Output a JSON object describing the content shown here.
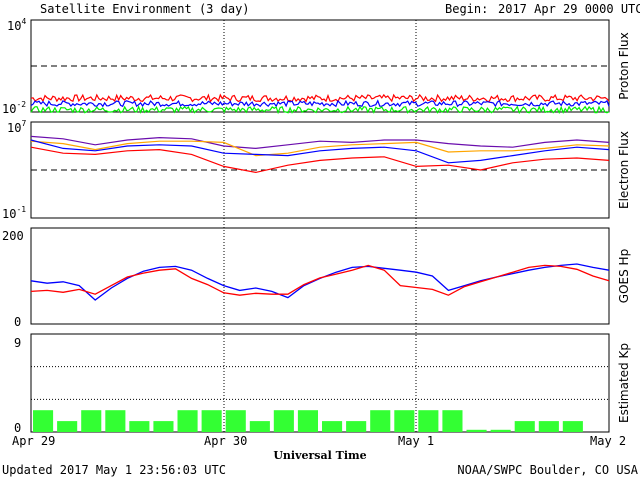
{
  "header": {
    "title": "Satellite Environment (3 day)",
    "begin_label": "Begin:",
    "begin_value": "2017 Apr 29 0000 UTC"
  },
  "footer": {
    "updated": "Updated 2017 May  1 23:56:03 UTC",
    "credit": "NOAA/SWPC Boulder, CO USA",
    "xlabel": "Universal Time"
  },
  "x_ticks": [
    "Apr 29",
    "Apr 30",
    "May 1",
    "May 2"
  ],
  "colors": {
    "red": "#ff0000",
    "blue": "#0000ff",
    "green": "#00ee00",
    "orange": "#ffa500",
    "purple": "#6a0dad",
    "bar": "#33ff33"
  },
  "chart_data": [
    {
      "type": "line",
      "panel": "proton",
      "ylabel": "Proton Flux",
      "scale": "log",
      "ylim_exp": [
        -2,
        4
      ],
      "y_ticks": [
        {
          "base": "10",
          "exp": "4",
          "v": 4
        },
        {
          "base": "10",
          "exp": "-2",
          "v": -2
        }
      ],
      "threshold_exp": 1,
      "xlim_hours": [
        0,
        72
      ],
      "series": [
        {
          "color": "#ff0000",
          "mean_exp": -1.1,
          "noise": 0.22
        },
        {
          "color": "#0000ff",
          "mean_exp": -1.45,
          "noise": 0.18
        },
        {
          "color": "#00ee00",
          "mean_exp": -1.85,
          "noise": 0.2
        }
      ]
    },
    {
      "type": "line",
      "panel": "electron",
      "ylabel": "Electron Flux",
      "scale": "log",
      "ylim_exp": [
        -1,
        7
      ],
      "y_ticks": [
        {
          "base": "10",
          "exp": "7",
          "v": 7
        },
        {
          "base": "10",
          "exp": "-1",
          "v": -1
        }
      ],
      "threshold_exp": 3,
      "x_hours": [
        0,
        4,
        8,
        12,
        16,
        20,
        24,
        28,
        32,
        36,
        40,
        44,
        48,
        52,
        56,
        60,
        64,
        68,
        72
      ],
      "series": [
        {
          "color": "#6a0dad",
          "values": [
            5.8,
            5.6,
            5.1,
            5.5,
            5.7,
            5.6,
            5.0,
            4.8,
            5.1,
            5.4,
            5.3,
            5.5,
            5.5,
            5.2,
            5.0,
            4.9,
            5.3,
            5.5,
            5.3
          ]
        },
        {
          "color": "#ffa500",
          "values": [
            5.4,
            5.2,
            4.7,
            5.2,
            5.4,
            5.4,
            5.3,
            4.2,
            4.4,
            4.9,
            5.1,
            5.2,
            5.3,
            4.5,
            4.6,
            4.6,
            4.8,
            5.1,
            5.0
          ]
        },
        {
          "color": "#0000ff",
          "values": [
            5.5,
            4.8,
            4.6,
            5.0,
            5.1,
            5.0,
            4.4,
            4.3,
            4.2,
            4.6,
            4.8,
            4.9,
            4.6,
            3.6,
            3.8,
            4.2,
            4.6,
            4.9,
            4.7
          ]
        },
        {
          "color": "#ff0000",
          "values": [
            4.9,
            4.4,
            4.3,
            4.6,
            4.7,
            4.3,
            3.3,
            2.8,
            3.4,
            3.8,
            4.0,
            4.1,
            3.3,
            3.4,
            3.0,
            3.6,
            3.9,
            4.0,
            3.8
          ]
        }
      ]
    },
    {
      "type": "line",
      "panel": "hp",
      "ylabel": "GOES Hp",
      "ylim": [
        0,
        200
      ],
      "y_ticks": [
        200,
        0
      ],
      "x_hours": [
        0,
        2,
        4,
        6,
        8,
        10,
        12,
        14,
        16,
        18,
        20,
        22,
        24,
        26,
        28,
        30,
        32,
        34,
        36,
        38,
        40,
        42,
        44,
        46,
        48,
        50,
        52,
        54,
        56,
        58,
        60,
        62,
        64,
        66,
        68,
        70,
        72
      ],
      "series": [
        {
          "color": "#0000ff",
          "values": [
            90,
            85,
            88,
            80,
            50,
            75,
            95,
            110,
            118,
            120,
            112,
            95,
            80,
            70,
            75,
            68,
            55,
            80,
            95,
            108,
            118,
            120,
            116,
            112,
            108,
            100,
            70,
            80,
            90,
            98,
            105,
            112,
            118,
            122,
            125,
            118,
            112
          ]
        },
        {
          "color": "#ff0000",
          "values": [
            68,
            70,
            66,
            72,
            62,
            80,
            98,
            106,
            112,
            115,
            95,
            82,
            65,
            60,
            64,
            62,
            62,
            82,
            96,
            104,
            112,
            122,
            112,
            80,
            76,
            72,
            60,
            78,
            88,
            98,
            108,
            118,
            122,
            120,
            114,
            100,
            90
          ]
        }
      ]
    },
    {
      "type": "bar",
      "panel": "kp",
      "ylabel": "Estimated Kp",
      "ylim": [
        0,
        9
      ],
      "y_ticks": [
        9,
        0
      ],
      "values": [
        2,
        1,
        2,
        2,
        1,
        1,
        2,
        2,
        2,
        1,
        2,
        2,
        1,
        1,
        2,
        2,
        2,
        2,
        0.2,
        0.2,
        1,
        1,
        1,
        0
      ]
    }
  ]
}
